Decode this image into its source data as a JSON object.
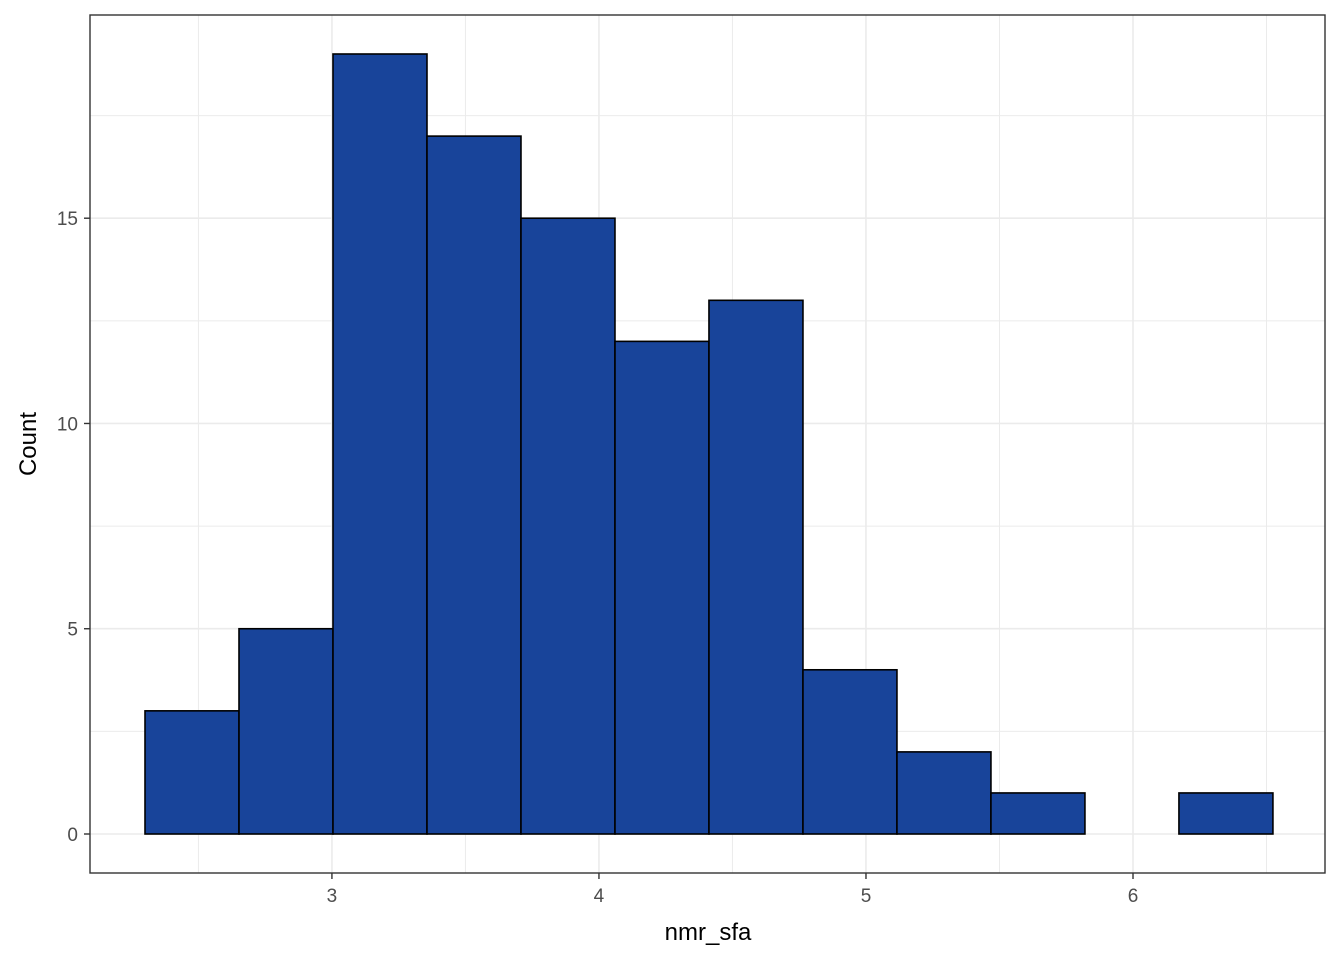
{
  "chart_data": {
    "type": "histogram",
    "xlabel": "nmr_sfa",
    "ylabel": "Count",
    "bins": [
      2.3,
      2.652,
      3.004,
      3.356,
      3.708,
      4.06,
      4.412,
      4.764,
      5.116,
      5.468,
      5.82,
      6.172,
      6.524
    ],
    "values": [
      3,
      5,
      19,
      17,
      15,
      12,
      13,
      4,
      2,
      1,
      0,
      1
    ],
    "color": "#18449a",
    "edgecolor": "#000000",
    "xlim": [
      2.094,
      6.719
    ],
    "xticks": [
      3,
      4,
      5,
      6
    ],
    "ylim": [
      -0.95,
      19.95
    ],
    "yticks": [
      0,
      5,
      10,
      15
    ],
    "grid": true
  }
}
